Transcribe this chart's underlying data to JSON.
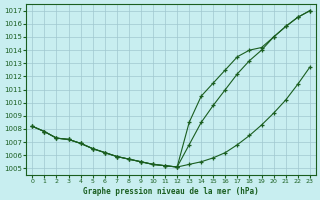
{
  "title": "Graphe pression niveau de la mer (hPa)",
  "bg_color": "#c8eef0",
  "grid_color": "#a0c8d0",
  "line_color": "#1a5e20",
  "marker_color": "#1a5e20",
  "x_ticks": [
    0,
    1,
    2,
    3,
    4,
    5,
    6,
    7,
    8,
    9,
    10,
    11,
    12,
    13,
    14,
    15,
    16,
    17,
    18,
    19,
    20,
    21,
    22,
    23
  ],
  "y_ticks": [
    1005,
    1006,
    1007,
    1008,
    1009,
    1010,
    1011,
    1012,
    1013,
    1014,
    1015,
    1016,
    1017
  ],
  "ylim": [
    1004.5,
    1017.5
  ],
  "xlim": [
    -0.5,
    23.5
  ],
  "line1": [
    1008.2,
    1007.8,
    1007.3,
    1007.2,
    1006.9,
    1006.5,
    1006.2,
    1005.9,
    1005.7,
    1005.5,
    1005.3,
    1005.2,
    1005.1,
    1005.3,
    1005.5,
    1005.8,
    1006.2,
    1006.8,
    1007.5,
    1008.3,
    1009.2,
    1010.2,
    1011.4,
    1012.7
  ],
  "line2": [
    1008.2,
    1007.8,
    1007.3,
    1007.2,
    1006.9,
    1006.5,
    1006.2,
    1005.9,
    1005.7,
    1005.5,
    1005.3,
    1005.2,
    1005.1,
    1006.8,
    1008.5,
    1009.8,
    1011.0,
    1012.2,
    1013.2,
    1014.0,
    1015.0,
    1015.8,
    1016.5,
    1017.0
  ],
  "line3": [
    1008.2,
    1007.8,
    1007.3,
    1007.2,
    1006.9,
    1006.5,
    1006.2,
    1005.9,
    1005.7,
    1005.5,
    1005.3,
    1005.2,
    1005.1,
    1008.5,
    1010.5,
    1011.5,
    1012.5,
    1013.5,
    1014.0,
    1014.2,
    1015.0,
    1015.8,
    1016.5,
    1017.0
  ]
}
